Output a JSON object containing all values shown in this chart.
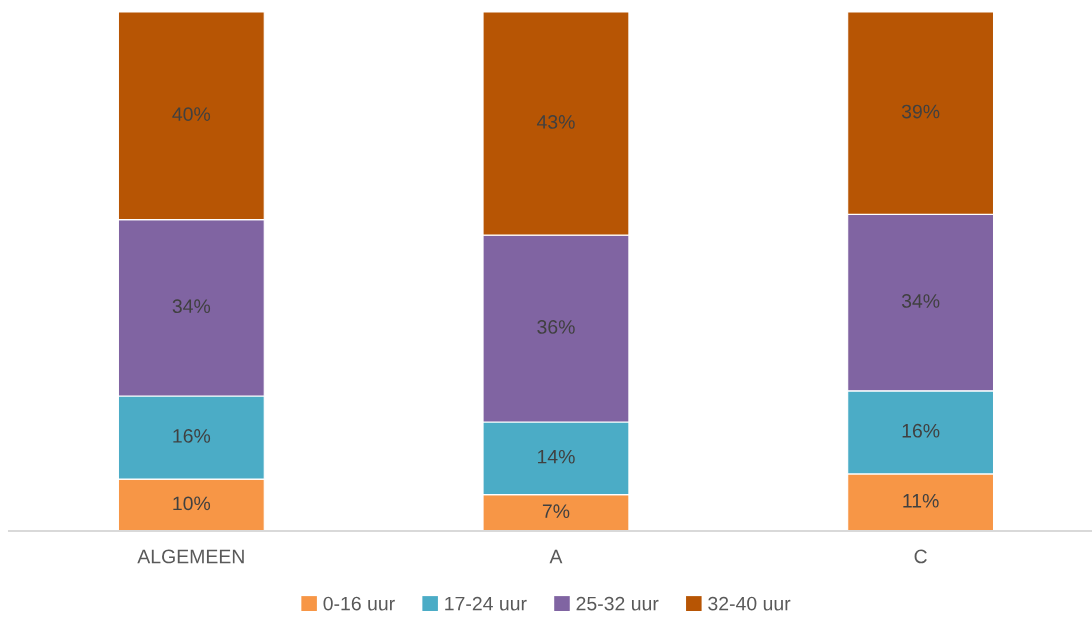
{
  "chart_data": {
    "type": "bar",
    "stacked": true,
    "legend": "bottom",
    "categories": [
      "ALGEMEEN",
      "A",
      "C"
    ],
    "series": [
      {
        "name": "0-16 uur",
        "color": "#f79646",
        "values": [
          10,
          7,
          11
        ],
        "value_labels": [
          "10%",
          "7%",
          "11%"
        ]
      },
      {
        "name": "17-24 uur",
        "color": "#4bacc6",
        "values": [
          16,
          14,
          16
        ],
        "value_labels": [
          "16%",
          "14%",
          "16%"
        ]
      },
      {
        "name": "25-32 uur",
        "color": "#8064a2",
        "values": [
          34,
          36,
          34
        ],
        "value_labels": [
          "34%",
          "36%",
          "34%"
        ]
      },
      {
        "name": "32-40 uur",
        "color": "#b75504",
        "values": [
          40,
          43,
          39
        ],
        "value_labels": [
          "40%",
          "43%",
          "39%"
        ]
      }
    ]
  }
}
